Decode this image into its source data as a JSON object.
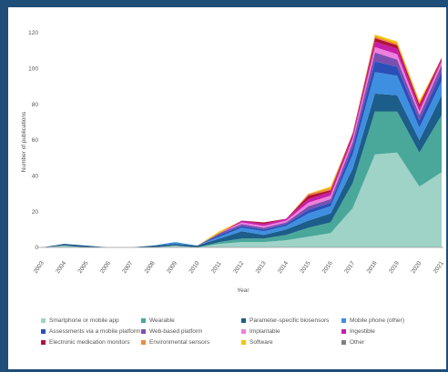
{
  "chart_data": {
    "type": "area",
    "stacked": true,
    "xlabel": "Year",
    "ylabel": "Number of publications",
    "ylim": [
      0,
      120
    ],
    "yticks": [
      0,
      20,
      40,
      60,
      80,
      100,
      120
    ],
    "grid": false,
    "legend_position": "bottom",
    "x": [
      "2003",
      "2004",
      "2005",
      "2006",
      "2007",
      "2008",
      "2009",
      "2010",
      "2011",
      "2012",
      "2013",
      "2014",
      "2015",
      "2016",
      "2017",
      "2018",
      "2019",
      "2020",
      "2021"
    ],
    "series": [
      {
        "name": "Smartphone or mobile app",
        "color": "#9fd3c7",
        "values": [
          0,
          1,
          0,
          0,
          0,
          0,
          1,
          0,
          2,
          3,
          3,
          4,
          6,
          8,
          22,
          52,
          53,
          34,
          42
        ]
      },
      {
        "name": "Wearable",
        "color": "#4aa89a",
        "values": [
          0,
          0,
          0,
          0,
          0,
          0,
          0,
          0,
          1,
          2,
          2,
          3,
          5,
          6,
          14,
          24,
          23,
          19,
          32
        ]
      },
      {
        "name": "Parameter-specific biosensors",
        "color": "#1c5d8a",
        "values": [
          0,
          1,
          1,
          0,
          0,
          1,
          1,
          1,
          2,
          4,
          2,
          3,
          4,
          5,
          8,
          10,
          9,
          7,
          11
        ]
      },
      {
        "name": "Mobile phone (other)",
        "color": "#3f8fe0",
        "values": [
          0,
          0,
          0,
          0,
          0,
          0,
          1,
          0,
          1,
          2,
          2,
          2,
          4,
          4,
          8,
          12,
          11,
          7,
          8
        ]
      },
      {
        "name": "Assessments via a mobile platform",
        "color": "#2a4fb8",
        "values": [
          0,
          0,
          0,
          0,
          0,
          0,
          0,
          0,
          1,
          1,
          1,
          1,
          2,
          2,
          4,
          6,
          5,
          4,
          5
        ]
      },
      {
        "name": "Web-based platform",
        "color": "#7a4fb0",
        "values": [
          0,
          0,
          0,
          0,
          0,
          0,
          0,
          0,
          1,
          1,
          1,
          1,
          2,
          2,
          3,
          5,
          4,
          3,
          4
        ]
      },
      {
        "name": "Implantable",
        "color": "#ee7fdc",
        "values": [
          0,
          0,
          0,
          0,
          0,
          0,
          0,
          0,
          0,
          1,
          1,
          1,
          2,
          2,
          2,
          3,
          3,
          2,
          2
        ]
      },
      {
        "name": "Ingestible",
        "color": "#c61ea8",
        "values": [
          0,
          0,
          0,
          0,
          0,
          0,
          0,
          0,
          0,
          1,
          1,
          1,
          2,
          2,
          2,
          3,
          3,
          2,
          1
        ]
      },
      {
        "name": "Electronic medication monitors",
        "color": "#b2123a",
        "values": [
          0,
          0,
          0,
          0,
          0,
          0,
          0,
          0,
          0,
          0,
          1,
          0,
          2,
          1,
          1,
          2,
          2,
          2,
          1
        ]
      },
      {
        "name": "Environmental sensors",
        "color": "#ef8a3a",
        "values": [
          0,
          0,
          0,
          0,
          0,
          0,
          0,
          0,
          0,
          0,
          0,
          0,
          1,
          1,
          0,
          1,
          1,
          1,
          0
        ]
      },
      {
        "name": "Software",
        "color": "#f5c400",
        "values": [
          0,
          0,
          0,
          0,
          0,
          0,
          0,
          0,
          1,
          0,
          0,
          0,
          0,
          1,
          0,
          1,
          1,
          1,
          0
        ]
      },
      {
        "name": "Other",
        "color": "#7f7f7f",
        "values": [
          0,
          0,
          0,
          0,
          0,
          0,
          0,
          0,
          0,
          0,
          0,
          0,
          0,
          0,
          0,
          0,
          0,
          0,
          0
        ]
      }
    ]
  }
}
